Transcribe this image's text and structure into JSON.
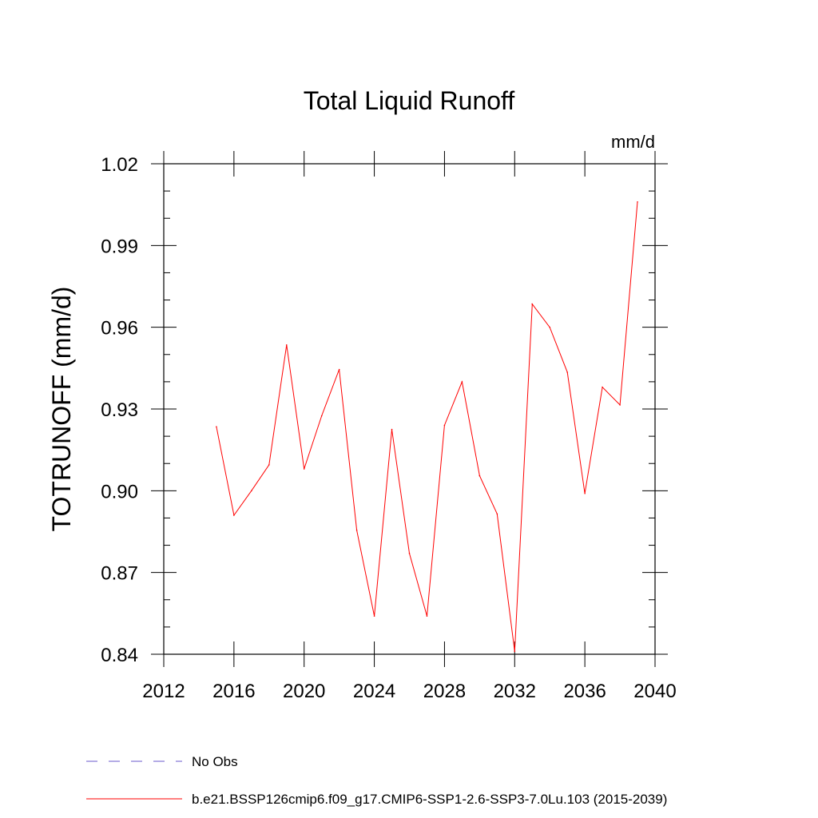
{
  "chart_data": {
    "type": "line",
    "title": "Total Liquid Runoff",
    "units": "mm/d",
    "xlabel": "",
    "ylabel": "TOTRUNOFF  (mm/d)",
    "xlim": [
      2012,
      2040
    ],
    "ylim": [
      0.84,
      1.02
    ],
    "x_ticks": [
      2012,
      2016,
      2020,
      2024,
      2028,
      2032,
      2036,
      2040
    ],
    "x_tick_labels": [
      "2012",
      "2016",
      "2020",
      "2024",
      "2028",
      "2032",
      "2036",
      "2040"
    ],
    "x_minor_step": 1,
    "y_ticks": [
      0.84,
      0.87,
      0.9,
      0.93,
      0.96,
      0.99,
      1.02
    ],
    "y_tick_labels": [
      "0.84",
      "0.87",
      "0.90",
      "0.93",
      "0.96",
      "0.99",
      "1.02"
    ],
    "y_minor_step": 0.01,
    "grid": false,
    "legend_position": "bottom-left",
    "series": [
      {
        "name": "b.e21.BSSP126cmip6.f09_g17.CMIP6-SSP1-2.6-SSP3-7.0Lu.103 (2015-2039)",
        "color": "#ff0000",
        "style": "solid",
        "x": [
          2015,
          2016,
          2017,
          2018,
          2019,
          2020,
          2021,
          2022,
          2023,
          2024,
          2025,
          2026,
          2027,
          2028,
          2029,
          2030,
          2031,
          2032,
          2033,
          2034,
          2035,
          2036,
          2037,
          2038,
          2039
        ],
        "values": [
          0.9235,
          0.891,
          0.9,
          0.9095,
          0.9535,
          0.908,
          0.9275,
          0.9445,
          0.8855,
          0.854,
          0.9225,
          0.877,
          0.854,
          0.924,
          0.94,
          0.9055,
          0.8915,
          0.841,
          0.9685,
          0.96,
          0.9435,
          0.899,
          0.938,
          0.9315,
          1.006
        ]
      }
    ],
    "legend": [
      {
        "label": "No Obs",
        "color": "#6a5acd",
        "style": "dashed"
      },
      {
        "label": "b.e21.BSSP126cmip6.f09_g17.CMIP6-SSP1-2.6-SSP3-7.0Lu.103 (2015-2039)",
        "color": "#ff0000",
        "style": "solid"
      }
    ]
  }
}
